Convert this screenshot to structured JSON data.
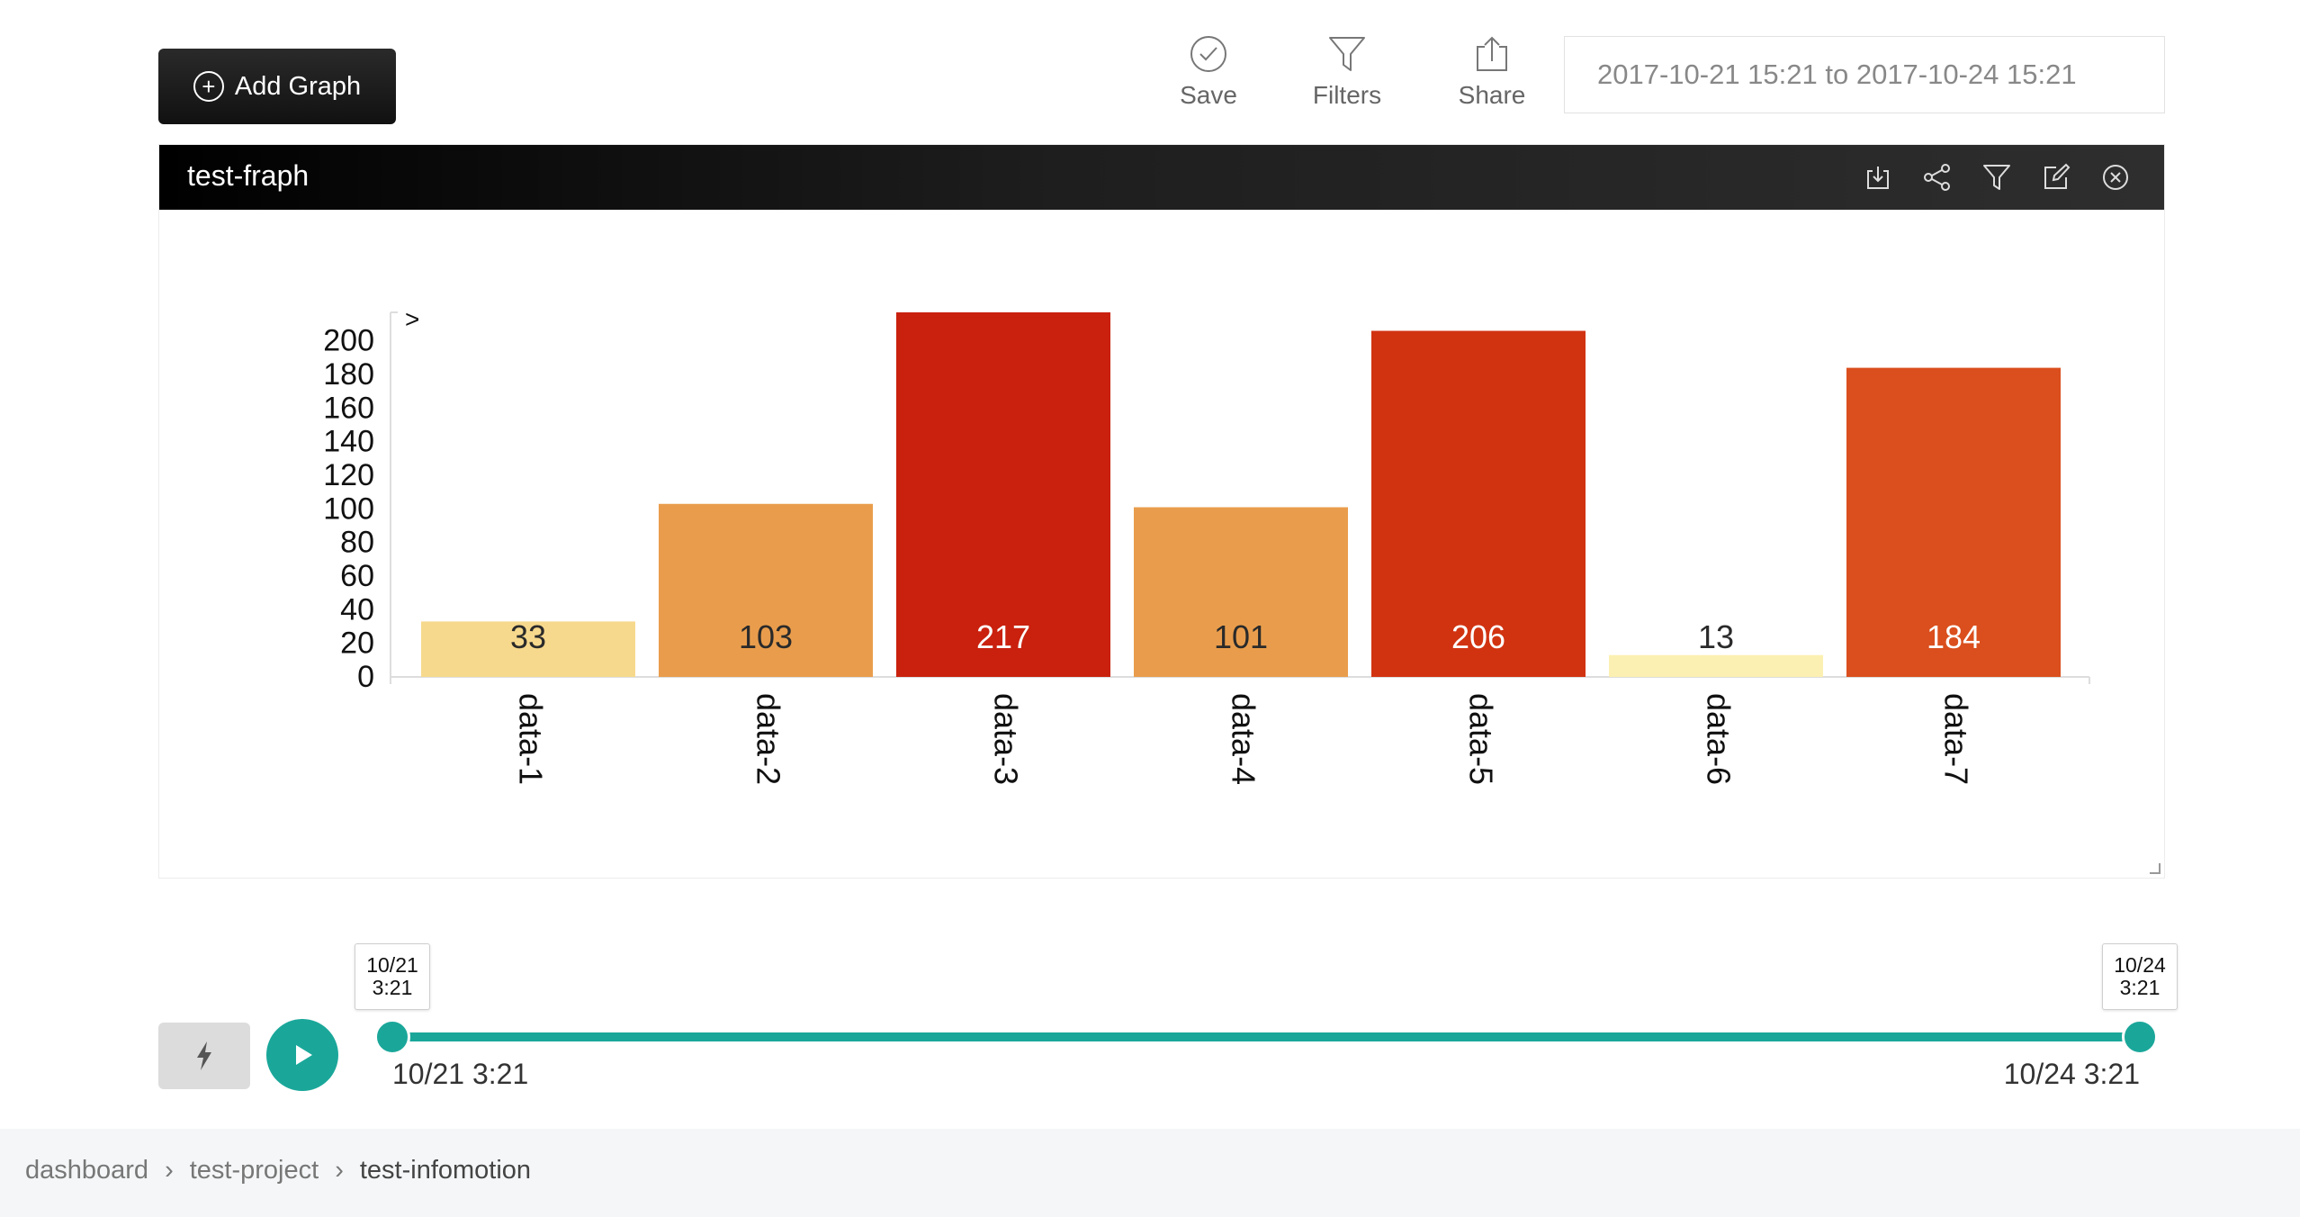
{
  "toolbar": {
    "add_graph_label": "Add Graph",
    "save_label": "Save",
    "filters_label": "Filters",
    "share_label": "Share",
    "date_range": "2017-10-21 15:21 to 2017-10-24 15:21"
  },
  "panel": {
    "title": "test-fraph",
    "header_icons": [
      "download-icon",
      "share-icon",
      "filter-icon",
      "edit-icon",
      "close-icon"
    ]
  },
  "chart_data": {
    "type": "bar",
    "categories": [
      "data-1",
      "data-2",
      "data-3",
      "data-4",
      "data-5",
      "data-6",
      "data-7"
    ],
    "values": [
      33,
      103,
      217,
      101,
      206,
      13,
      184
    ],
    "colors": [
      "#f7d98d",
      "#e99d4c",
      "#c9210e",
      "#e99d4c",
      "#d13311",
      "#fbf0b1",
      "#da4f1d"
    ],
    "yticks": [
      0,
      20,
      40,
      60,
      80,
      100,
      120,
      140,
      160,
      180,
      200
    ],
    "ylim": [
      0,
      217
    ],
    "corner_mark": ">"
  },
  "timeline": {
    "start_tip_date": "10/21",
    "start_tip_time": "3:21",
    "end_tip_date": "10/24",
    "end_tip_time": "3:21",
    "start_label": "10/21 3:21",
    "end_label": "10/24 3:21",
    "accent": "#1aa79a"
  },
  "breadcrumb": {
    "items": [
      "dashboard",
      "test-project",
      "test-infomotion"
    ]
  }
}
